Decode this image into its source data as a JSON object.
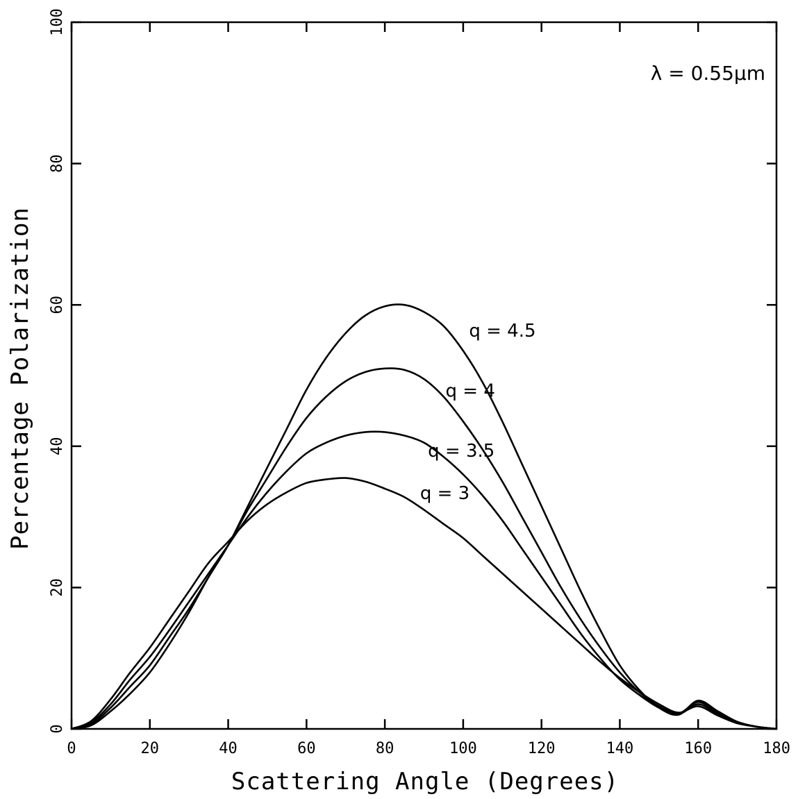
{
  "chart_data": {
    "type": "line",
    "title": "",
    "xlabel": "Scattering Angle (Degrees)",
    "ylabel": "Percentage Polarization",
    "xlim": [
      0,
      180
    ],
    "ylim": [
      0,
      100
    ],
    "xticks": [
      0,
      20,
      40,
      60,
      80,
      100,
      120,
      140,
      160,
      180
    ],
    "yticks": [
      0,
      20,
      40,
      60,
      80,
      100
    ],
    "grid": false,
    "legend": "none",
    "annotation": "λ = 0.55μm",
    "series": [
      {
        "name": "q = 4.5",
        "x": [
          0,
          5,
          10,
          15,
          20,
          25,
          30,
          35,
          40,
          45,
          50,
          55,
          60,
          65,
          70,
          75,
          80,
          85,
          90,
          95,
          100,
          105,
          110,
          115,
          120,
          125,
          130,
          135,
          140,
          145,
          150,
          155,
          160,
          165,
          170,
          175,
          180
        ],
        "y": [
          0,
          0.5,
          2.5,
          5,
          8,
          12,
          16.5,
          21.5,
          26,
          31.5,
          37,
          42.5,
          48,
          52.5,
          56,
          58.5,
          59.8,
          60,
          59,
          57,
          53.5,
          49,
          43.5,
          37.5,
          31.5,
          25.5,
          19.5,
          14,
          9,
          5.5,
          3,
          2,
          4,
          2.5,
          1,
          0.3,
          0
        ]
      },
      {
        "name": "q = 4",
        "x": [
          0,
          5,
          10,
          15,
          20,
          25,
          30,
          35,
          40,
          45,
          50,
          55,
          60,
          65,
          70,
          75,
          80,
          85,
          90,
          95,
          100,
          105,
          110,
          115,
          120,
          125,
          130,
          135,
          140,
          145,
          150,
          155,
          160,
          165,
          170,
          175,
          180
        ],
        "y": [
          0,
          0.7,
          3,
          6,
          9,
          13,
          17,
          21.5,
          26,
          31,
          35.5,
          40,
          44,
          47,
          49.2,
          50.5,
          51,
          50.8,
          49.5,
          47,
          43.5,
          39.5,
          35,
          30,
          25,
          20,
          15.5,
          11.5,
          8,
          5.2,
          3.2,
          2.2,
          3.8,
          2.3,
          1,
          0.3,
          0
        ]
      },
      {
        "name": "q = 3.5",
        "x": [
          0,
          5,
          10,
          15,
          20,
          25,
          30,
          35,
          40,
          45,
          50,
          55,
          60,
          65,
          70,
          75,
          80,
          85,
          90,
          95,
          100,
          105,
          110,
          115,
          120,
          125,
          130,
          135,
          140,
          145,
          150,
          155,
          160,
          165,
          170,
          175,
          180
        ],
        "y": [
          0,
          0.9,
          3.5,
          7,
          10.2,
          14,
          18,
          22,
          26,
          30,
          33.5,
          36.5,
          39,
          40.5,
          41.5,
          42,
          42,
          41.5,
          40.5,
          38.5,
          36,
          33,
          29.5,
          25.5,
          21.5,
          17.5,
          13.5,
          10,
          7,
          4.8,
          3,
          2.1,
          3.5,
          2.1,
          0.9,
          0.3,
          0
        ]
      },
      {
        "name": "q = 3",
        "x": [
          0,
          5,
          10,
          15,
          20,
          25,
          30,
          35,
          40,
          45,
          50,
          55,
          60,
          65,
          70,
          75,
          80,
          85,
          90,
          95,
          100,
          105,
          110,
          115,
          120,
          125,
          130,
          135,
          140,
          145,
          150,
          155,
          160,
          165,
          170,
          175,
          180
        ],
        "y": [
          0,
          1.1,
          4.2,
          8,
          11.5,
          15.5,
          19.5,
          23.5,
          26.5,
          29.5,
          31.8,
          33.5,
          34.8,
          35.3,
          35.5,
          35,
          34,
          32.8,
          31,
          29,
          27,
          24.5,
          22,
          19.5,
          17,
          14.5,
          12,
          9.5,
          7.2,
          5.2,
          3.5,
          2.3,
          3.2,
          1.9,
          0.8,
          0.3,
          0
        ]
      }
    ]
  }
}
